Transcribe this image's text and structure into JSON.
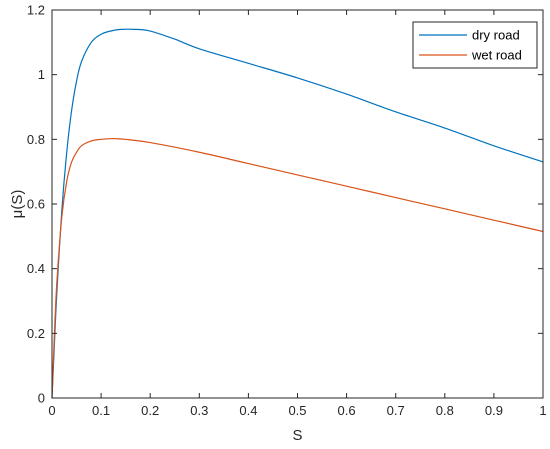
{
  "chart_data": {
    "type": "line",
    "title": "",
    "xlabel": "S",
    "ylabel": "μ(S)",
    "xlim": [
      0,
      1
    ],
    "ylim": [
      0,
      1.2
    ],
    "xticks": [
      "0",
      "0.1",
      "0.2",
      "0.3",
      "0.4",
      "0.5",
      "0.6",
      "0.7",
      "0.8",
      "0.9",
      "1"
    ],
    "yticks": [
      "0",
      "0.2",
      "0.4",
      "0.6",
      "0.8",
      "1",
      "1.2"
    ],
    "grid": false,
    "legend_position": "top-right",
    "series": [
      {
        "name": "dry road",
        "color": "#0072BD",
        "x": [
          0,
          0.005,
          0.01,
          0.02,
          0.03,
          0.04,
          0.05,
          0.06,
          0.08,
          0.1,
          0.12,
          0.14,
          0.17,
          0.2,
          0.25,
          0.3,
          0.4,
          0.5,
          0.6,
          0.7,
          0.8,
          0.9,
          1.0
        ],
        "y": [
          0,
          0.17,
          0.33,
          0.58,
          0.76,
          0.89,
          0.98,
          1.04,
          1.1,
          1.125,
          1.135,
          1.14,
          1.14,
          1.135,
          1.11,
          1.08,
          1.035,
          0.99,
          0.94,
          0.885,
          0.835,
          0.78,
          0.73
        ]
      },
      {
        "name": "wet road",
        "color": "#D95319",
        "x": [
          0,
          0.005,
          0.01,
          0.02,
          0.03,
          0.04,
          0.05,
          0.06,
          0.08,
          0.1,
          0.12,
          0.13,
          0.15,
          0.2,
          0.3,
          0.4,
          0.5,
          0.6,
          0.7,
          0.8,
          0.9,
          1.0
        ],
        "y": [
          0,
          0.2,
          0.36,
          0.56,
          0.67,
          0.73,
          0.76,
          0.78,
          0.795,
          0.8,
          0.802,
          0.802,
          0.8,
          0.79,
          0.76,
          0.725,
          0.69,
          0.655,
          0.62,
          0.585,
          0.55,
          0.515
        ]
      }
    ]
  }
}
